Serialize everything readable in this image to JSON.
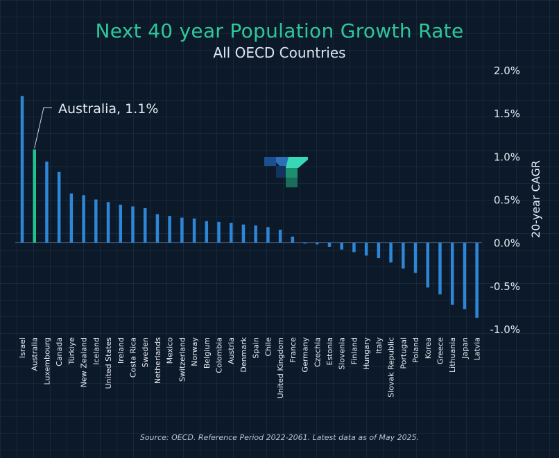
{
  "chart_data": {
    "type": "bar",
    "title": "Next 40 year Population Growth Rate",
    "subtitle": "All OECD Countries",
    "ylabel": "20-year CAGR",
    "ylim": [
      -1.0,
      2.0
    ],
    "yticks": [
      {
        "value": 2.0,
        "label": "2.0%"
      },
      {
        "value": 1.5,
        "label": "1.5%"
      },
      {
        "value": 1.0,
        "label": "1.0%"
      },
      {
        "value": 0.5,
        "label": "0.5%"
      },
      {
        "value": 0.0,
        "label": "0.0%"
      },
      {
        "value": -0.5,
        "label": "-0.5%"
      },
      {
        "value": -1.0,
        "label": "-1.0%"
      }
    ],
    "categories": [
      "Israel",
      "Australia",
      "Luxembourg",
      "Canada",
      "Türkiye",
      "New Zealand",
      "Iceland",
      "United States",
      "Ireland",
      "Costa Rica",
      "Sweden",
      "Netherlands",
      "Mexico",
      "Switzerland",
      "Norway",
      "Belgium",
      "Colombia",
      "Austria",
      "Denmark",
      "Spain",
      "Chile",
      "United Kingdom",
      "France",
      "Germany",
      "Czechia",
      "Estonia",
      "Slovenia",
      "Finland",
      "Hungary",
      "Italy",
      "Slovak Republic",
      "Portugal",
      "Poland",
      "Korea",
      "Greece",
      "Lithuania",
      "Japan",
      "Latvia"
    ],
    "values": [
      1.7,
      1.08,
      0.94,
      0.82,
      0.57,
      0.55,
      0.5,
      0.47,
      0.44,
      0.42,
      0.4,
      0.33,
      0.31,
      0.29,
      0.28,
      0.25,
      0.24,
      0.23,
      0.21,
      0.2,
      0.18,
      0.15,
      0.07,
      -0.01,
      -0.02,
      -0.05,
      -0.08,
      -0.11,
      -0.15,
      -0.18,
      -0.23,
      -0.3,
      -0.35,
      -0.52,
      -0.6,
      -0.72,
      -0.77,
      -0.87
    ],
    "highlight": {
      "category": "Australia",
      "label": "Australia, 1.1%"
    },
    "colors": {
      "bar": "#2e86d6",
      "highlight": "#21c48f",
      "title": "#2fc79a"
    }
  },
  "source": "Source: OECD. Reference Period 2022-2061. Latest data as of May 2025.",
  "logo": {
    "icon": "company-logo-icon"
  }
}
